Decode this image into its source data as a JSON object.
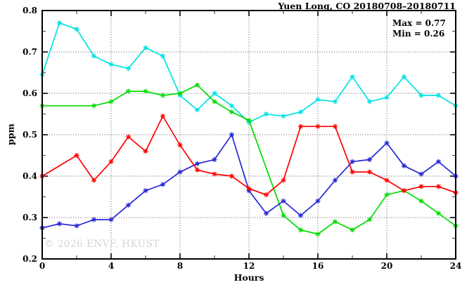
{
  "header": {
    "title": "Yuen Long, CO 20180708–20180711"
  },
  "annotation": {
    "max": "Max = 0.77",
    "min": "Min = 0.26"
  },
  "watermark": "© 2026 ENVF, HKUST",
  "axes": {
    "xlabel": "Hours",
    "ylabel": "ppm"
  },
  "chart_data": {
    "type": "line",
    "title": "Yuen Long, CO 20180708–20180711",
    "xlabel": "Hours",
    "ylabel": "ppm",
    "xlim": [
      0,
      24
    ],
    "ylim": [
      0.2,
      0.8
    ],
    "x_major_ticks": [
      0,
      4,
      8,
      12,
      16,
      20,
      24
    ],
    "x_minor_ticks": [
      2,
      6,
      10,
      14,
      18,
      22
    ],
    "y_major_ticks": [
      0.2,
      0.3,
      0.4,
      0.5,
      0.6,
      0.7,
      0.8
    ],
    "y_minor_ticks": [
      0.25,
      0.35,
      0.45,
      0.55,
      0.65,
      0.75
    ],
    "grid": {
      "x_at": [
        4,
        8,
        12,
        16,
        20
      ],
      "y_at": [
        0.3,
        0.4,
        0.5,
        0.6,
        0.7
      ],
      "style": "dotted"
    },
    "legend": "none",
    "marker": "asterisk",
    "stats": {
      "max": 0.77,
      "min": 0.26
    },
    "x": [
      0,
      1,
      2,
      3,
      4,
      5,
      6,
      7,
      8,
      9,
      10,
      11,
      12,
      13,
      14,
      15,
      16,
      17,
      18,
      19,
      20,
      21,
      22,
      23,
      24
    ],
    "series": [
      {
        "name": "cyan",
        "color": "#00e2e2",
        "values": [
          0.645,
          0.77,
          0.755,
          0.69,
          0.67,
          0.66,
          0.71,
          0.69,
          0.595,
          0.56,
          0.6,
          0.57,
          0.53,
          0.55,
          0.545,
          0.555,
          0.585,
          0.58,
          0.64,
          0.58,
          0.59,
          0.64,
          0.595,
          0.595,
          0.57
        ]
      },
      {
        "name": "green",
        "color": "#00dc00",
        "values": [
          0.57,
          null,
          null,
          0.57,
          0.58,
          0.605,
          0.605,
          0.595,
          0.6,
          0.62,
          0.58,
          0.555,
          0.535,
          null,
          0.305,
          0.27,
          0.26,
          0.29,
          0.27,
          0.295,
          0.355,
          0.365,
          0.34,
          0.31,
          0.28
        ]
      },
      {
        "name": "blue",
        "color": "#2626d6",
        "values": [
          0.275,
          0.285,
          0.28,
          0.295,
          0.295,
          0.33,
          0.365,
          0.38,
          0.41,
          0.43,
          0.44,
          0.5,
          0.365,
          0.31,
          0.34,
          0.305,
          0.34,
          0.39,
          0.435,
          0.44,
          0.48,
          0.425,
          0.405,
          0.435,
          0.4
        ]
      },
      {
        "name": "red",
        "color": "#ff0000",
        "values": [
          0.4,
          null,
          0.45,
          0.39,
          0.435,
          0.495,
          0.46,
          0.545,
          0.475,
          0.415,
          0.405,
          0.4,
          0.37,
          0.355,
          0.39,
          0.52,
          0.52,
          0.52,
          0.41,
          0.41,
          0.39,
          0.365,
          0.375,
          0.375,
          0.36
        ]
      }
    ]
  }
}
